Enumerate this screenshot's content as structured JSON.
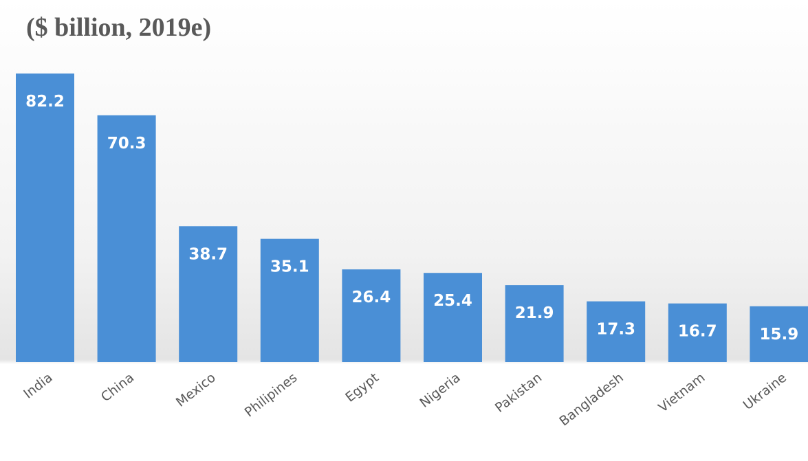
{
  "chart_data": {
    "type": "bar",
    "title": "($ billion, 2019e)",
    "categories": [
      "India",
      "China",
      "Mexico",
      "Philipines",
      "Egypt",
      "Nigeria",
      "Pakistan",
      "Bangladesh",
      "Vietnam",
      "Ukraine"
    ],
    "values": [
      82.2,
      70.3,
      38.7,
      35.1,
      26.4,
      25.4,
      21.9,
      17.3,
      16.7,
      15.9
    ],
    "color": "#4a8fd6"
  }
}
